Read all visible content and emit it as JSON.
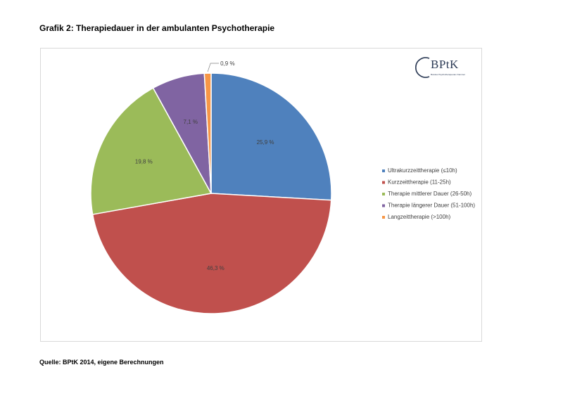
{
  "page": {
    "title": "Grafik 2: Therapiedauer in der ambulanten Psychotherapie",
    "source": "Quelle: BPtK 2014, eigene Berechnungen"
  },
  "logo": {
    "text": "BPtK",
    "subtitle": "Bundes Psychotherapeuten Kammer"
  },
  "chart_data": {
    "type": "pie",
    "title": "",
    "legend_position": "right",
    "start_angle_deg": 90,
    "direction": "clockwise",
    "slices": [
      {
        "name": "Ultrakurzzeittherapie (≤10h)",
        "value": 25.9,
        "label": "25,9 %",
        "color": "#4f81bd"
      },
      {
        "name": "Kurzzeittherapie (11-25h)",
        "value": 46.3,
        "label": "46,3 %",
        "color": "#c0504d"
      },
      {
        "name": "Therapie mittlerer Dauer (26-50h)",
        "value": 19.8,
        "label": "19,8 %",
        "color": "#9bbb59"
      },
      {
        "name": "Therapie längerer Dauer (51-100h)",
        "value": 7.1,
        "label": "7,1 %",
        "color": "#8064a2"
      },
      {
        "name": "Langzeittherapie (>100h)",
        "value": 0.9,
        "label": "0,9 %",
        "color": "#f79646"
      }
    ]
  }
}
